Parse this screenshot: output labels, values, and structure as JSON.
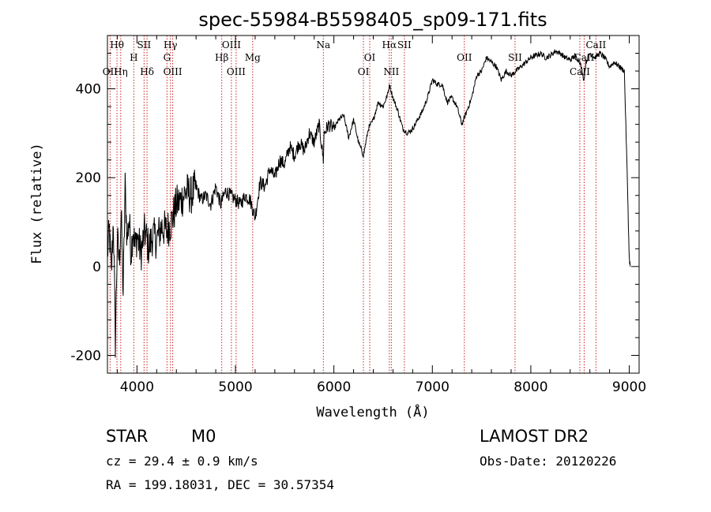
{
  "chart_data": {
    "type": "line",
    "title": "spec-55984-B5598405_sp09-171.fits",
    "xlabel": "Wavelength (Å)",
    "ylabel": "Flux (relative)",
    "xlim": [
      3700,
      9100
    ],
    "ylim": [
      -240,
      520
    ],
    "x_ticks": [
      4000,
      5000,
      6000,
      7000,
      8000,
      9000
    ],
    "y_ticks": [
      -200,
      0,
      200,
      400
    ],
    "grid": false,
    "series": [
      {
        "x": [
          3700,
          3720,
          3740,
          3760,
          3780,
          3800,
          3820,
          3840,
          3860,
          3880,
          3900,
          3920,
          3940,
          3960,
          3980,
          4000,
          4040,
          4080,
          4120,
          4160,
          4200,
          4250,
          4300,
          4350,
          4400,
          4450,
          4500,
          4550,
          4600,
          4650,
          4700,
          4750,
          4800,
          4850,
          4900,
          4950,
          5000,
          5050,
          5100,
          5150,
          5200,
          5250,
          5300,
          5350,
          5400,
          5450,
          5500,
          5550,
          5600,
          5650,
          5700,
          5750,
          5800,
          5850,
          5893,
          5900,
          5950,
          6000,
          6050,
          6100,
          6150,
          6200,
          6250,
          6300,
          6350,
          6400,
          6450,
          6500,
          6550,
          6563,
          6600,
          6650,
          6700,
          6750,
          6800,
          6850,
          6900,
          6950,
          7000,
          7050,
          7100,
          7150,
          7200,
          7250,
          7300,
          7350,
          7400,
          7450,
          7500,
          7550,
          7600,
          7650,
          7700,
          7750,
          7800,
          7850,
          7900,
          7950,
          8000,
          8050,
          8100,
          8150,
          8200,
          8250,
          8300,
          8350,
          8400,
          8450,
          8500,
          8540,
          8560,
          8600,
          8650,
          8700,
          8750,
          8800,
          8850,
          8900,
          8950,
          8980,
          8995,
          9000,
          9010
        ],
        "y": [
          30,
          80,
          -20,
          110,
          -170,
          60,
          10,
          120,
          -60,
          180,
          60,
          110,
          30,
          90,
          40,
          70,
          30,
          80,
          40,
          70,
          60,
          90,
          80,
          100,
          140,
          150,
          170,
          160,
          180,
          150,
          160,
          140,
          180,
          140,
          170,
          160,
          150,
          140,
          160,
          150,
          110,
          190,
          180,
          220,
          200,
          240,
          230,
          270,
          250,
          280,
          260,
          300,
          280,
          320,
          240,
          300,
          320,
          310,
          330,
          340,
          290,
          330,
          280,
          250,
          310,
          330,
          370,
          360,
          390,
          410,
          380,
          350,
          310,
          300,
          310,
          330,
          350,
          380,
          420,
          410,
          410,
          370,
          380,
          360,
          320,
          350,
          380,
          430,
          440,
          470,
          460,
          450,
          420,
          440,
          430,
          440,
          450,
          460,
          470,
          475,
          480,
          470,
          475,
          485,
          480,
          470,
          465,
          475,
          460,
          420,
          460,
          480,
          470,
          480,
          470,
          450,
          460,
          450,
          440,
          200,
          60,
          20,
          0
        ]
      }
    ],
    "line_labels": [
      {
        "label": "Hθ",
        "x": 3797,
        "row": 1
      },
      {
        "label": "OII",
        "x": 3727,
        "row": 3
      },
      {
        "label": "Hη",
        "x": 3835,
        "row": 3
      },
      {
        "label": "H",
        "x": 3968,
        "row": 2
      },
      {
        "label": "SII",
        "x": 4072,
        "row": 1
      },
      {
        "label": "Hδ",
        "x": 4102,
        "row": 3
      },
      {
        "label": "Hγ",
        "x": 4340,
        "row": 1
      },
      {
        "label": "G",
        "x": 4305,
        "row": 2
      },
      {
        "label": "OIII",
        "x": 4363,
        "row": 3
      },
      {
        "label": "Hβ",
        "x": 4861,
        "row": 2
      },
      {
        "label": "OIII",
        "x": 4959,
        "row": 1
      },
      {
        "label": "OIII",
        "x": 5007,
        "row": 3
      },
      {
        "label": "Mg",
        "x": 5175,
        "row": 2
      },
      {
        "label": "Na",
        "x": 5893,
        "row": 1
      },
      {
        "label": "OI",
        "x": 6364,
        "row": 2
      },
      {
        "label": "OI",
        "x": 6300,
        "row": 3
      },
      {
        "label": "Hα",
        "x": 6563,
        "row": 1
      },
      {
        "label": "SII",
        "x": 6716,
        "row": 1
      },
      {
        "label": "NII",
        "x": 6583,
        "row": 3
      },
      {
        "label": "OII",
        "x": 7325,
        "row": 2
      },
      {
        "label": "SII",
        "x": 7840,
        "row": 2
      },
      {
        "label": "CaII",
        "x": 8662,
        "row": 1
      },
      {
        "label": "CaII",
        "x": 8542,
        "row": 2
      },
      {
        "label": "CaII",
        "x": 8498,
        "row": 3
      }
    ],
    "line_markers": [
      3727,
      3797,
      3835,
      3968,
      4072,
      4102,
      4305,
      4340,
      4363,
      4861,
      4959,
      5007,
      5175,
      5893,
      6300,
      6364,
      6563,
      6583,
      6716,
      7325,
      7840,
      8498,
      8542,
      8662
    ]
  },
  "info": {
    "class_label": "STAR",
    "subclass_label": "M0",
    "survey_label": "LAMOST DR2",
    "cz_text": "cz = 29.4 ± 0.9 km/s",
    "obs_date_text": "Obs-Date: 20120226",
    "coords_text": "RA = 199.18031, DEC =  30.57354"
  },
  "colors": {
    "spectrum": "#000000",
    "marker": "#cc2222",
    "text": "#000000",
    "background": "#ffffff"
  }
}
